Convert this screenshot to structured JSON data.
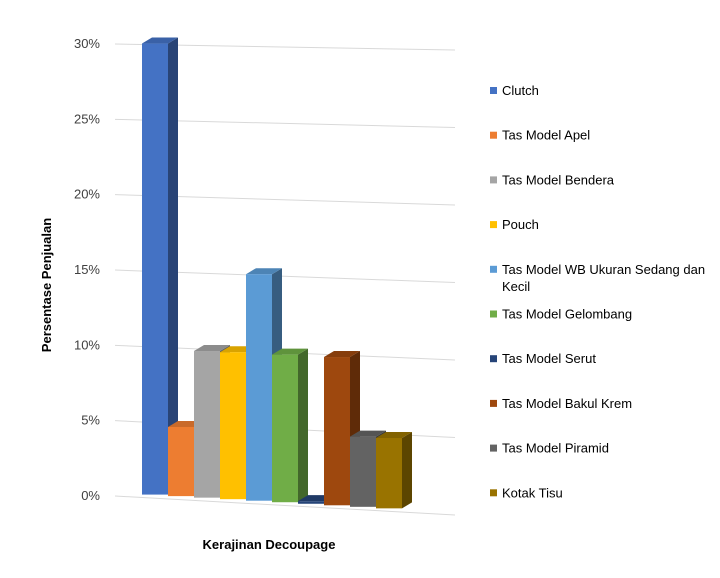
{
  "chart_data": {
    "type": "bar",
    "title": "",
    "xlabel": "Kerajinan Decoupage",
    "ylabel": "Persentase Penjualan",
    "ylim": [
      0,
      30
    ],
    "ytick_suffix": "%",
    "yticks": [
      0,
      5,
      10,
      15,
      20,
      25,
      30
    ],
    "grid": true,
    "legend_position": "right",
    "series": [
      {
        "name": "Clutch",
        "value": 30,
        "color": "#4472C4"
      },
      {
        "name": "Tas Model Apel",
        "value": 4.7,
        "color": "#ED7D31"
      },
      {
        "name": "Tas Model Bendera",
        "value": 9.8,
        "color": "#A5A5A5"
      },
      {
        "name": "Pouch",
        "value": 9.8,
        "color": "#FFC000"
      },
      {
        "name": "Tas Model WB Ukuran Sedang dan Kecil",
        "value": 15,
        "color": "#5B9BD5"
      },
      {
        "name": "Tas Model Gelombang",
        "value": 9.8,
        "color": "#70AD47"
      },
      {
        "name": "Tas Model Serut",
        "value": 0.3,
        "color": "#264478"
      },
      {
        "name": "Tas Model Bakul Krem",
        "value": 9.8,
        "color": "#9E480E"
      },
      {
        "name": "Tas Model Piramid",
        "value": 4.7,
        "color": "#636363"
      },
      {
        "name": "Kotak Tisu",
        "value": 4.7,
        "color": "#997300"
      }
    ]
  }
}
